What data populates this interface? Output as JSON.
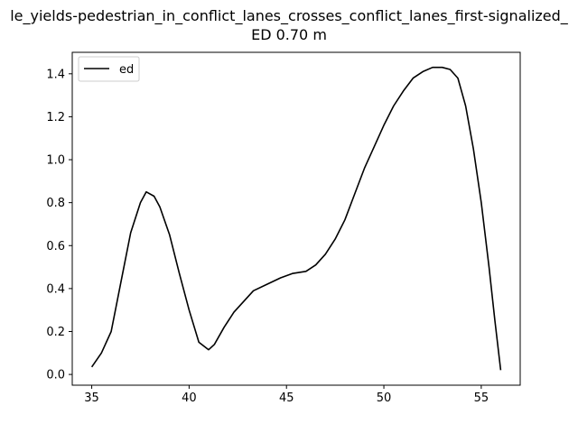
{
  "chart_data": {
    "type": "line",
    "title_line1": "le_yields-pedestrian_in_conflict_lanes_crosses_conflict_lanes_first-signalized_",
    "title_line2": "ED 0.70 m",
    "xlabel": "",
    "ylabel": "",
    "xlim": [
      34.0,
      57.0
    ],
    "ylim": [
      -0.05,
      1.5
    ],
    "x_ticks": [
      35,
      40,
      45,
      50,
      55
    ],
    "y_ticks": [
      0.0,
      0.2,
      0.4,
      0.6,
      0.8,
      1.0,
      1.2,
      1.4
    ],
    "x_tick_labels": [
      "35",
      "40",
      "45",
      "50",
      "55"
    ],
    "y_tick_labels": [
      "0.0",
      "0.2",
      "0.4",
      "0.6",
      "0.8",
      "1.0",
      "1.2",
      "1.4"
    ],
    "grid": false,
    "legend_position": "top-left",
    "series": [
      {
        "name": "ed",
        "color": "#000000",
        "x": [
          35.0,
          35.5,
          36.0,
          36.5,
          37.0,
          37.5,
          37.8,
          38.2,
          38.5,
          39.0,
          39.5,
          40.0,
          40.5,
          41.0,
          41.3,
          41.8,
          42.3,
          42.8,
          43.3,
          44.0,
          44.7,
          45.3,
          46.0,
          46.5,
          47.0,
          47.5,
          48.0,
          48.5,
          49.0,
          49.5,
          50.0,
          50.5,
          51.0,
          51.5,
          52.0,
          52.5,
          53.0,
          53.4,
          53.8,
          54.2,
          54.6,
          55.0,
          55.4,
          55.7,
          56.0
        ],
        "y": [
          0.035,
          0.1,
          0.2,
          0.43,
          0.66,
          0.8,
          0.85,
          0.83,
          0.78,
          0.65,
          0.47,
          0.3,
          0.15,
          0.115,
          0.14,
          0.22,
          0.29,
          0.34,
          0.39,
          0.42,
          0.45,
          0.47,
          0.48,
          0.51,
          0.56,
          0.63,
          0.72,
          0.84,
          0.96,
          1.06,
          1.16,
          1.25,
          1.32,
          1.38,
          1.41,
          1.43,
          1.43,
          1.42,
          1.38,
          1.25,
          1.05,
          0.8,
          0.5,
          0.25,
          0.02
        ]
      }
    ]
  }
}
